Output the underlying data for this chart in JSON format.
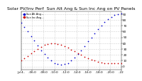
{
  "title": "Solar PV/Inv Perf  Sun Alt Ang & Sun Inc Ang on PV Panels",
  "ylim": [
    -5,
    95
  ],
  "xlim": [
    0,
    1
  ],
  "background_color": "#ffffff",
  "grid_color": "#aaaaaa",
  "blue_color": "#0000cc",
  "red_color": "#cc0000",
  "blue_x": [
    0.0,
    0.033,
    0.067,
    0.1,
    0.133,
    0.167,
    0.2,
    0.233,
    0.267,
    0.3,
    0.333,
    0.367,
    0.4,
    0.433,
    0.467,
    0.5,
    0.533,
    0.567,
    0.6,
    0.633,
    0.667,
    0.7,
    0.733,
    0.767,
    0.8,
    0.833,
    0.867,
    0.9,
    0.933,
    0.967,
    1.0
  ],
  "blue_y": [
    75,
    68,
    60,
    52,
    44,
    36,
    28,
    21,
    15,
    10,
    6,
    4,
    3,
    4,
    6,
    10,
    15,
    21,
    28,
    35,
    43,
    50,
    57,
    64,
    70,
    76,
    81,
    85,
    88,
    90,
    91
  ],
  "red_x": [
    0.0,
    0.033,
    0.067,
    0.1,
    0.133,
    0.167,
    0.2,
    0.233,
    0.267,
    0.3,
    0.333,
    0.367,
    0.4,
    0.433,
    0.467,
    0.5,
    0.533,
    0.567,
    0.6,
    0.633,
    0.667,
    0.7,
    0.733,
    0.767,
    0.8,
    0.833,
    0.867,
    0.9,
    0.933,
    0.967,
    1.0
  ],
  "red_y": [
    10,
    14,
    18,
    22,
    26,
    30,
    34,
    37,
    39,
    40,
    40,
    39,
    37,
    35,
    32,
    29,
    26,
    23,
    20,
    17,
    14,
    12,
    10,
    8,
    7,
    6,
    5,
    5,
    5,
    5,
    6
  ],
  "y_ticks": [
    0,
    10,
    20,
    30,
    40,
    50,
    60,
    70,
    80,
    90
  ],
  "y_tick_labels": [
    "0",
    "10",
    "20",
    "30",
    "40",
    "50",
    "60",
    "70",
    "80",
    "90"
  ],
  "x_tick_positions": [
    0.0,
    0.111,
    0.222,
    0.333,
    0.444,
    0.556,
    0.667,
    0.778,
    0.889,
    1.0
  ],
  "x_tick_labels": [
    "Jul 4..",
    "..06:0",
    "..08:0",
    "..10:0",
    "..12:0",
    "..14:0",
    "..16:0",
    "..18:0",
    "..20:0",
    "..22"
  ],
  "title_fontsize": 4.5,
  "tick_fontsize": 3.0,
  "legend_blue": "Sun Alt Ang --",
  "legend_red": "Sun Inc Ang --"
}
